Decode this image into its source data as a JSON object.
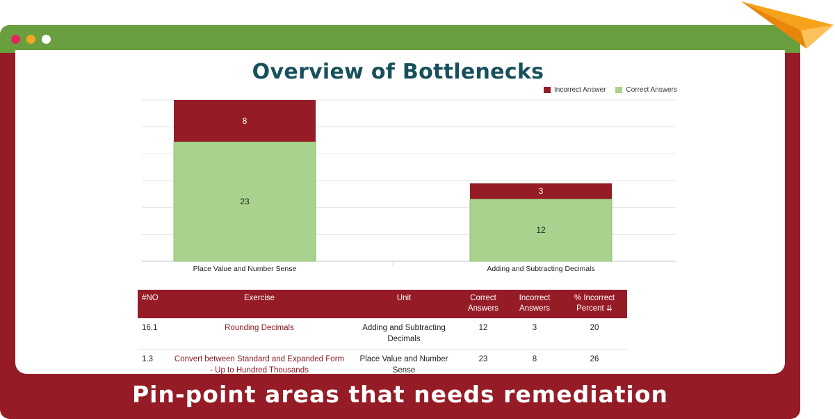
{
  "caption": "Pin-point areas that needs remediation",
  "colors": {
    "frame": "#951c26",
    "titlebar": "#6a9f3f",
    "incorrect": "#951c26",
    "correct": "#a8d28d",
    "title": "#17505b"
  },
  "window_controls": [
    "close-dot",
    "minimize-dot",
    "maximize-dot"
  ],
  "chart_data": {
    "type": "bar",
    "stacked": true,
    "title": "Overview of Bottlenecks",
    "categories": [
      "Place Value and Number Sense",
      "Adding and Subtracting Decimals"
    ],
    "series": [
      {
        "name": "Correct Answers",
        "values": [
          23,
          12
        ],
        "color": "#a8d28d"
      },
      {
        "name": "Incorrect Answer",
        "values": [
          8,
          3
        ],
        "color": "#951c26"
      }
    ],
    "ylim": [
      0,
      31
    ],
    "grid": true,
    "legend_position": "top-right",
    "legend": [
      "Incorrect Answer",
      "Correct Answers"
    ]
  },
  "table": {
    "headers": [
      "#NO",
      "Exercise",
      "Unit",
      "Correct Answers",
      "Incorrect Answers",
      "% Incorrect Percent"
    ],
    "rows": [
      {
        "no": "16.1",
        "exercise": "Rounding Decimals",
        "unit": "Adding and Subtracting Decimals",
        "correct": "12",
        "incorrect": "3",
        "percent": "20"
      },
      {
        "no": "1.3",
        "exercise": "Convert between Standard and Expanded Form - Up to Hundred Thousands",
        "unit": "Place Value and Number Sense",
        "correct": "23",
        "incorrect": "8",
        "percent": "26"
      }
    ]
  }
}
